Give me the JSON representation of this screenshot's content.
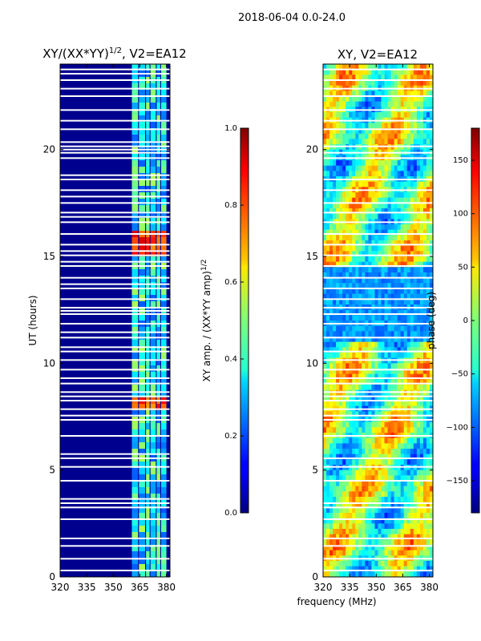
{
  "suptitle": "2018-06-04 0.0-24.0",
  "chart_data": [
    {
      "type": "heatmap",
      "title_main": "XY/(XX*YY)",
      "title_sup": "1/2",
      "title_tail": ", V2=EA12",
      "xlabel": "",
      "ylabel": "UT (hours)",
      "xlim": [
        320,
        382
      ],
      "ylim": [
        0,
        24
      ],
      "xticks": [
        320,
        335,
        350,
        365,
        380
      ],
      "yticks": [
        0,
        5,
        10,
        15,
        20
      ],
      "colorbar": {
        "label_main": "XY amp. / (XX*YY amp)",
        "label_sup": "1/2",
        "range": [
          0.0,
          1.0
        ],
        "ticks": [
          "0.0",
          "0.2",
          "0.4",
          "0.6",
          "0.8",
          "1.0"
        ],
        "tick_values": [
          0.0,
          0.2,
          0.4,
          0.6,
          0.8,
          1.0
        ]
      },
      "band_columns_mhz": [
        [
          360.5,
          364
        ],
        [
          364.5,
          368
        ],
        [
          368.5,
          370.5
        ],
        [
          371,
          374
        ],
        [
          374.5,
          376.5
        ],
        [
          377,
          380
        ]
      ],
      "flagged_ut_hours": [
        0.3,
        0.85,
        1.45,
        1.8,
        2.7,
        3.25,
        3.45,
        3.65,
        4.5,
        5.15,
        5.55,
        5.75,
        6.6,
        7.35,
        7.55,
        7.85,
        8.25,
        8.45,
        8.65,
        9.05,
        9.3,
        9.7,
        10.15,
        10.55,
        10.75,
        11.2,
        11.45,
        11.85,
        12.3,
        12.45,
        12.6,
        13.0,
        13.5,
        13.7,
        14.0,
        14.55,
        14.75,
        15.05,
        15.25,
        15.55,
        16.05,
        16.6,
        16.85,
        17.05,
        17.5,
        17.8,
        18.1,
        18.6,
        18.8,
        19.6,
        19.85,
        20.0,
        20.15,
        20.35,
        20.95,
        21.35,
        21.85,
        22.5,
        22.85,
        23.25,
        23.55,
        23.75
      ]
    },
    {
      "type": "heatmap",
      "title": "XY, V2=EA12",
      "xlabel": "frequency (MHz)",
      "ylabel": "",
      "xlim": [
        320,
        382
      ],
      "ylim": [
        0,
        24
      ],
      "xticks": [
        320,
        335,
        350,
        365,
        380
      ],
      "yticks": [
        0,
        5,
        10,
        15,
        20
      ],
      "colorbar": {
        "label": "phase (deg)",
        "range": [
          -180,
          180
        ],
        "ticks": [
          "150",
          "100",
          "50",
          "0",
          "−50",
          "−100",
          "−150"
        ],
        "tick_values": [
          150,
          100,
          50,
          0,
          -50,
          -100,
          -150
        ]
      },
      "flagged_ut_hours": [
        0.3,
        0.85,
        1.45,
        1.8,
        2.7,
        3.25,
        3.45,
        4.5,
        5.15,
        5.55,
        6.6,
        7.35,
        7.55,
        7.85,
        8.25,
        8.45,
        8.65,
        9.05,
        9.3,
        9.7,
        10.15,
        10.55,
        11.2,
        11.85,
        12.3,
        12.6,
        13.0,
        13.5,
        14.0,
        14.55,
        15.05,
        15.55,
        16.05,
        16.6,
        17.05,
        17.5,
        18.1,
        18.6,
        19.6,
        19.85,
        20.15,
        20.95,
        21.35,
        21.85,
        22.5,
        22.85,
        23.25,
        23.75
      ]
    }
  ]
}
